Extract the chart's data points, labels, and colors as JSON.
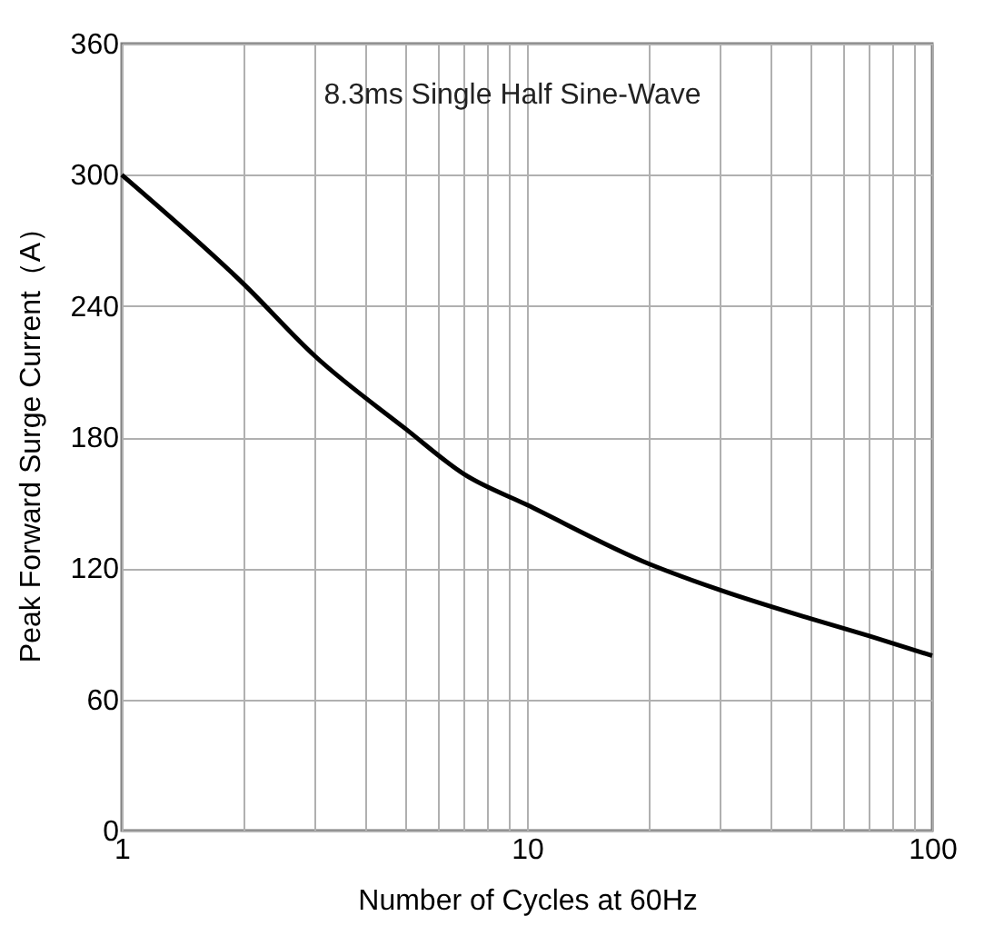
{
  "chart_data": {
    "type": "line",
    "xlabel": "Number of Cycles at 60Hz",
    "ylabel": "Peak Forward Surge Current（A）",
    "annotations": [
      "8.3ms Single Half Sine-Wave"
    ],
    "x": [
      1,
      2,
      3,
      5,
      7,
      10,
      20,
      30,
      50,
      70,
      100
    ],
    "series": [
      {
        "color": "#000000",
        "values": [
          300,
          250,
          217,
          184,
          163,
          149,
          122,
          110,
          97,
          89,
          80
        ]
      }
    ],
    "log": "x",
    "xlim": [
      1,
      100
    ],
    "xticks": [
      1,
      {
        "value": 2,
        "label": null
      },
      {
        "value": 3,
        "label": null
      },
      {
        "value": 4,
        "label": null
      },
      {
        "value": 5,
        "label": null
      },
      {
        "value": 6,
        "label": null
      },
      {
        "value": 7,
        "label": null
      },
      {
        "value": 8,
        "label": null
      },
      {
        "value": 9,
        "label": null
      },
      10,
      {
        "value": 20,
        "label": null
      },
      {
        "value": 30,
        "label": null
      },
      {
        "value": 40,
        "label": null
      },
      {
        "value": 50,
        "label": null
      },
      {
        "value": 60,
        "label": null
      },
      {
        "value": 70,
        "label": null
      },
      {
        "value": 80,
        "label": null
      },
      {
        "value": 90,
        "label": null
      },
      100
    ],
    "ylim": [
      0,
      360
    ],
    "yticks": [
      0,
      60,
      120,
      180,
      240,
      300,
      360
    ],
    "grid": true,
    "line_style": "solid",
    "marker": "none"
  }
}
